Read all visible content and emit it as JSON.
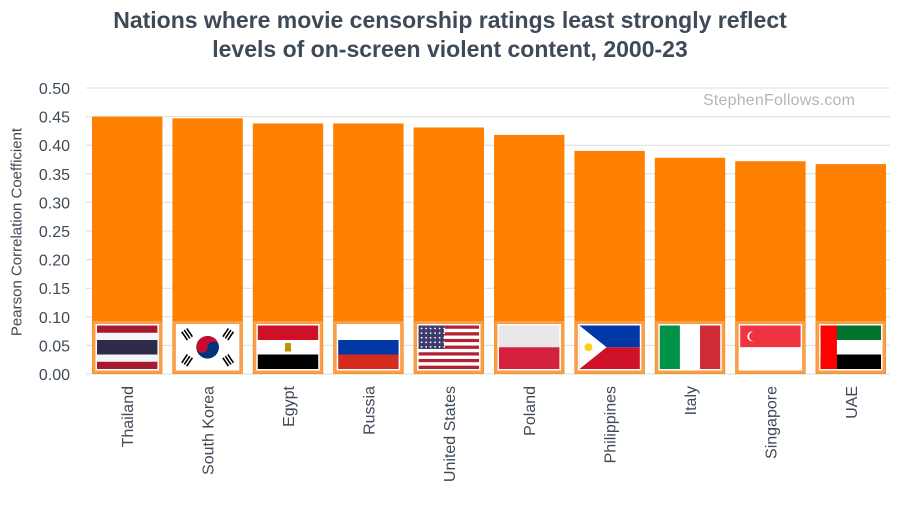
{
  "title_line1": "Nations where movie censorship ratings least strongly reflect",
  "title_line2": "levels of on-screen violent content, 2000-23",
  "watermark": "StephenFollows.com",
  "chart_data": {
    "type": "bar",
    "title": "Nations where movie censorship ratings least strongly reflect levels of on-screen violent content, 2000-23",
    "xlabel": "",
    "ylabel": "Pearson Correlation Coefficient",
    "ylim": [
      0,
      0.5
    ],
    "yticks": [
      "0.00",
      "0.05",
      "0.10",
      "0.15",
      "0.20",
      "0.25",
      "0.30",
      "0.35",
      "0.40",
      "0.45",
      "0.50"
    ],
    "grid": true,
    "categories": [
      "Thailand",
      "South Korea",
      "Egypt",
      "Russia",
      "United States",
      "Poland",
      "Philippines",
      "Italy",
      "Singapore",
      "UAE"
    ],
    "values": [
      0.45,
      0.447,
      0.438,
      0.438,
      0.431,
      0.418,
      0.39,
      0.378,
      0.372,
      0.367
    ],
    "bar_color": "#ff7f00",
    "flags": [
      "thailand-flag",
      "south-korea-flag",
      "egypt-flag",
      "russia-flag",
      "usa-flag",
      "poland-flag",
      "philippines-flag",
      "italy-flag",
      "singapore-flag",
      "uae-flag"
    ]
  }
}
